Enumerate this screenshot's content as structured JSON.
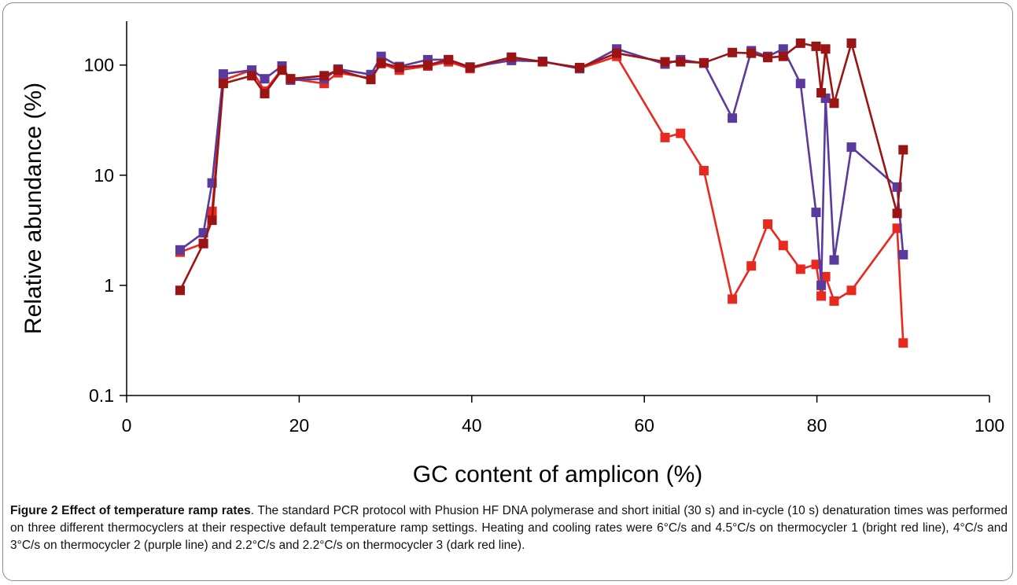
{
  "caption": {
    "title": "Figure 2 Effect of temperature ramp rates",
    "text": ". The standard PCR protocol with Phusion HF DNA polymerase and short initial (30 s) and in-cycle (10 s) denaturation times was performed on three different thermocyclers at their respective default temperature ramp settings. Heating and cooling rates were 6°C/s and 4.5°C/s on thermocycler 1 (bright red line), 4°C/s and 3°C/s on thermocycler 2 (purple line) and 2.2°C/s and 2.2°C/s on thermocycler 3 (dark red line)."
  },
  "chart_data": {
    "type": "line",
    "xlabel": "GC content of amplicon (%)",
    "ylabel": "Relative abundance (%)",
    "xlim": [
      0,
      100
    ],
    "ylim": [
      0.1,
      250
    ],
    "yscale": "log",
    "xticks": [
      0,
      20,
      40,
      60,
      80,
      100
    ],
    "yticks": [
      0.1,
      1,
      10,
      100
    ],
    "ytick_labels": [
      "0.1",
      "1",
      "10",
      "100"
    ],
    "grid": false,
    "legend": "none",
    "marker": "square",
    "series": [
      {
        "color": "#e8291f",
        "x": [
          6.2,
          8.9,
          9.9,
          11.2,
          14.5,
          16.0,
          18.0,
          19.0,
          22.9,
          24.5,
          28.3,
          29.5,
          31.6,
          34.9,
          37.3,
          39.8,
          44.6,
          48.2,
          52.5,
          56.8,
          62.4,
          64.2,
          66.9,
          70.2,
          72.4,
          74.3,
          76.1,
          78.1,
          79.9,
          80.5,
          81.0,
          82.0,
          84.0,
          89.3,
          90.0
        ],
        "y": [
          2.0,
          2.4,
          4.7,
          73,
          90,
          58,
          92,
          75,
          68,
          85,
          76,
          103,
          90,
          98,
          107,
          93,
          115,
          108,
          93,
          120,
          22,
          24,
          11,
          0.75,
          1.5,
          3.6,
          2.3,
          1.4,
          1.55,
          0.8,
          1.2,
          0.72,
          0.9,
          3.3,
          0.3
        ]
      },
      {
        "color": "#5b3a9e",
        "x": [
          6.2,
          8.9,
          9.9,
          11.2,
          14.5,
          16.0,
          18.0,
          19.0,
          22.9,
          24.5,
          28.3,
          29.5,
          31.6,
          34.9,
          37.3,
          39.8,
          44.6,
          48.2,
          52.5,
          56.8,
          62.4,
          64.2,
          66.9,
          70.2,
          72.4,
          74.3,
          76.1,
          78.1,
          79.9,
          80.5,
          81.0,
          82.0,
          84.0,
          89.3,
          90.0
        ],
        "y": [
          2.1,
          3.0,
          8.5,
          83,
          90,
          75,
          98,
          73,
          75,
          92,
          82,
          120,
          97,
          112,
          112,
          96,
          110,
          108,
          93,
          140,
          102,
          112,
          104,
          33,
          135,
          120,
          140,
          68,
          4.6,
          1.0,
          50,
          1.7,
          18,
          7.8,
          1.9
        ]
      },
      {
        "color": "#9b1414",
        "x": [
          6.2,
          8.9,
          9.9,
          11.2,
          14.5,
          16.0,
          18.0,
          19.0,
          22.9,
          24.5,
          28.3,
          29.5,
          31.6,
          34.9,
          37.3,
          39.8,
          44.6,
          48.2,
          52.5,
          56.8,
          62.4,
          64.2,
          66.9,
          70.2,
          72.4,
          74.3,
          76.1,
          78.1,
          79.9,
          80.5,
          81.0,
          82.0,
          84.0,
          89.3,
          90.0
        ],
        "y": [
          0.9,
          2.4,
          3.9,
          68,
          80,
          55,
          90,
          75,
          80,
          90,
          74,
          105,
          95,
          100,
          112,
          95,
          118,
          107,
          95,
          128,
          107,
          107,
          105,
          130,
          128,
          117,
          120,
          158,
          148,
          56,
          140,
          45,
          158,
          4.5,
          17
        ]
      }
    ]
  }
}
